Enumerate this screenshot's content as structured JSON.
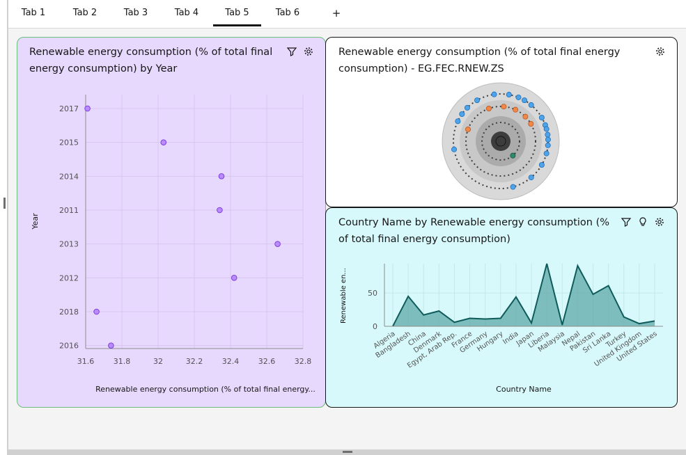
{
  "tabs": [
    {
      "label": "Tab 1",
      "active": false
    },
    {
      "label": "Tab 2",
      "active": false
    },
    {
      "label": "Tab 3",
      "active": false
    },
    {
      "label": "Tab 4",
      "active": false
    },
    {
      "label": "Tab 5",
      "active": true
    },
    {
      "label": "Tab 6",
      "active": false
    }
  ],
  "add_tab_label": "+",
  "cards": {
    "scatter": {
      "title_line1": "Renewable energy consumption (% of total final",
      "title_line2": "energy consumption)  by Year",
      "icons": [
        "filter-icon",
        "settings-icon"
      ]
    },
    "circle": {
      "title_line1": "Renewable energy consumption (% of total final energy",
      "title_line2": "consumption) - EG.FEC.RNEW.ZS",
      "icons": [
        "settings-icon"
      ]
    },
    "area": {
      "title_line1": "Country Name by Renewable energy consumption (%",
      "title_line2": "of total final energy consumption)",
      "icons": [
        "filter-icon",
        "lightbulb-icon",
        "settings-icon"
      ]
    }
  },
  "chart_data": [
    {
      "type": "scatter",
      "xlabel": "Renewable energy consumption (% of total final energy...",
      "ylabel": "Year",
      "categories": [
        "2017",
        "2015",
        "2014",
        "2011",
        "2013",
        "2012",
        "2018",
        "2016"
      ],
      "values": [
        31.61,
        32.03,
        32.35,
        32.34,
        32.66,
        32.42,
        31.66,
        31.74
      ],
      "xlim": [
        31.6,
        32.8
      ],
      "x_ticks": [
        "31.6",
        "31.8",
        "32",
        "32.2",
        "32.4",
        "32.6",
        "32.8"
      ],
      "color": "#a56eff",
      "grid": true
    },
    {
      "type": "area",
      "xlabel": "Country Name",
      "ylabel": "Renewable en...",
      "categories": [
        "Algeria",
        "Bangladesh",
        "China",
        "Denmark",
        "Egypt, Arab Rep.",
        "France",
        "Germany",
        "Hungary",
        "India",
        "Japan",
        "Liberia",
        "Malaysia",
        "Nepal",
        "Pakistan",
        "Sri Lanka",
        "Turkey",
        "United Kingdom",
        "United States"
      ],
      "values": [
        0.1,
        45,
        17,
        23,
        6,
        12,
        11,
        12,
        44,
        5,
        94,
        2,
        91,
        48,
        61,
        14,
        4,
        8
      ],
      "ylim": [
        0,
        94
      ],
      "y_ticks": [
        "0",
        "50"
      ],
      "line_color": "#0f5b5b",
      "fill_color": "#5fa8a8"
    }
  ]
}
